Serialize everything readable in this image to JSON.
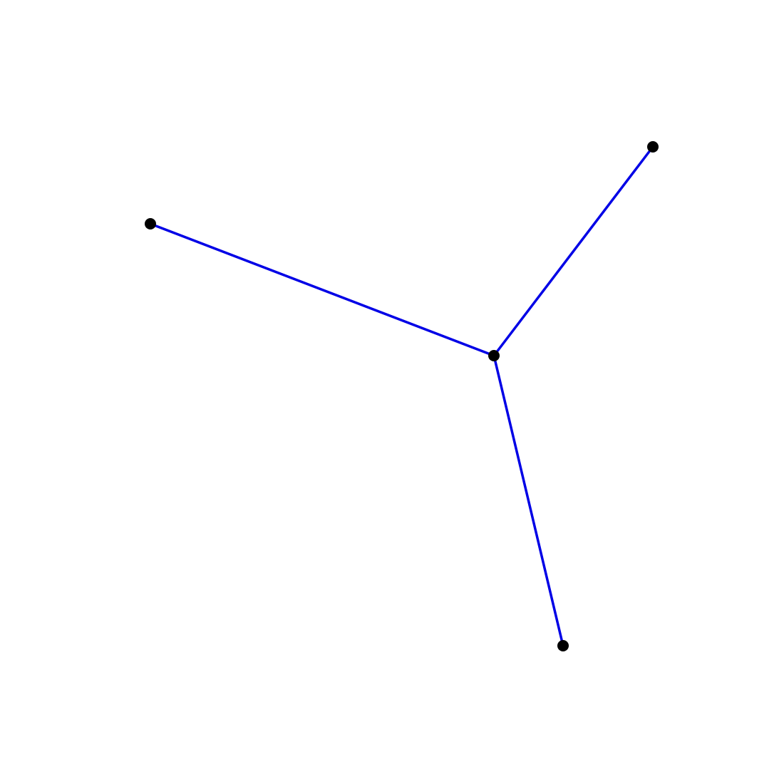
{
  "graph": {
    "kind": "star",
    "center_node": "center",
    "nodes": [
      {
        "id": "center"
      },
      {
        "id": "leaf-top-right"
      },
      {
        "id": "leaf-left"
      },
      {
        "id": "leaf-bottom"
      }
    ],
    "edges": [
      {
        "from": "center",
        "to": "leaf-top-right"
      },
      {
        "from": "center",
        "to": "leaf-left"
      },
      {
        "from": "center",
        "to": "leaf-bottom"
      }
    ]
  },
  "colors": {
    "edge": "#0000e6",
    "node": "#000000",
    "background": "#ffffff"
  }
}
